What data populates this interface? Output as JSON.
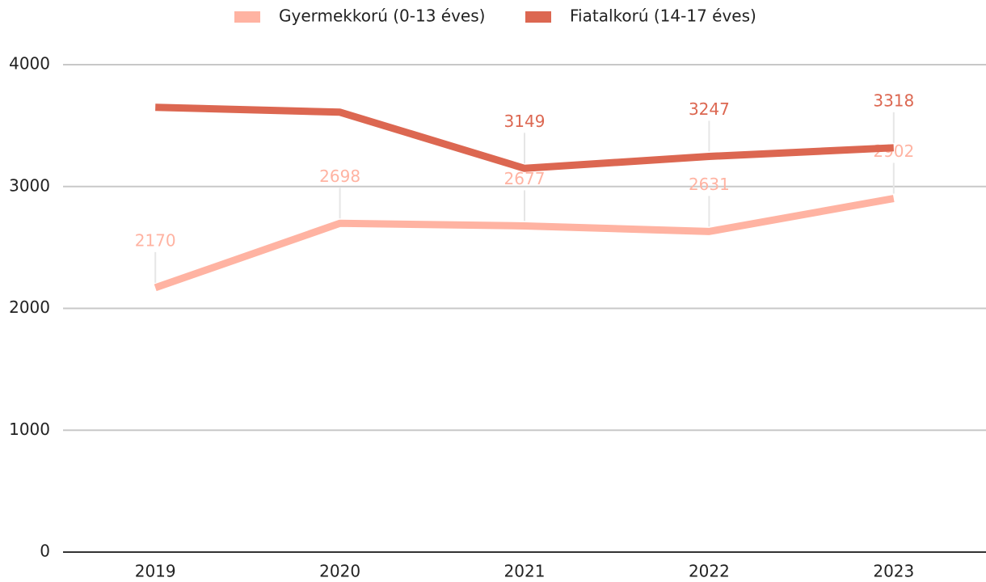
{
  "chart_data": {
    "type": "line",
    "categories": [
      "2019",
      "2020",
      "2021",
      "2022",
      "2023"
    ],
    "series": [
      {
        "name": "Gyermekkorú (0-13 éves)",
        "color": "#ffb3a2",
        "values": [
          2170,
          2698,
          2677,
          2631,
          2902
        ]
      },
      {
        "name": "Fiatalkorú (14-17 éves)",
        "color": "#dc6751",
        "values": [
          3650,
          3610,
          3149,
          3247,
          3318
        ],
        "value_labels": [
          null,
          null,
          "3149",
          "3247",
          "3318"
        ]
      }
    ],
    "ylim": [
      0,
      4000
    ],
    "yticks": [
      0,
      1000,
      2000,
      3000,
      4000
    ],
    "grid": true,
    "legend": "top"
  }
}
